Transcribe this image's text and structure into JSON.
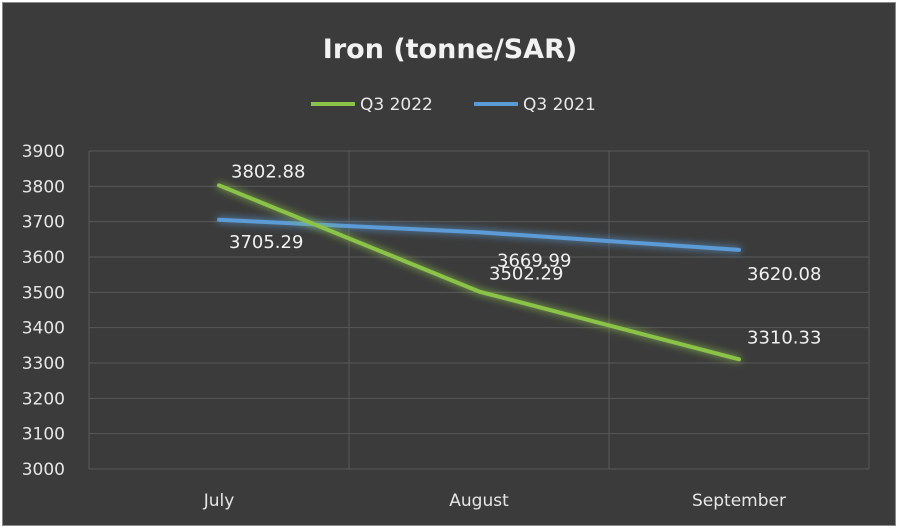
{
  "chart_data": {
    "type": "line",
    "title": "Iron (tonne/SAR)",
    "categories": [
      "July",
      "August",
      "September"
    ],
    "series": [
      {
        "name": "Q3 2022",
        "color": "#8bc34a",
        "values": [
          3802.88,
          3502.29,
          3310.33
        ],
        "labels": [
          "3802.88",
          "3502.29",
          "3310.33"
        ]
      },
      {
        "name": "Q3 2021",
        "color": "#5b9bd5",
        "values": [
          3705.29,
          3669.99,
          3620.08
        ],
        "labels": [
          "3705.29",
          "3669.99",
          "3620.08"
        ]
      }
    ],
    "ylim": [
      3000,
      3900
    ],
    "yticks": [
      3000,
      3100,
      3200,
      3300,
      3400,
      3500,
      3600,
      3700,
      3800,
      3900
    ],
    "grid": true,
    "legend": "top"
  }
}
